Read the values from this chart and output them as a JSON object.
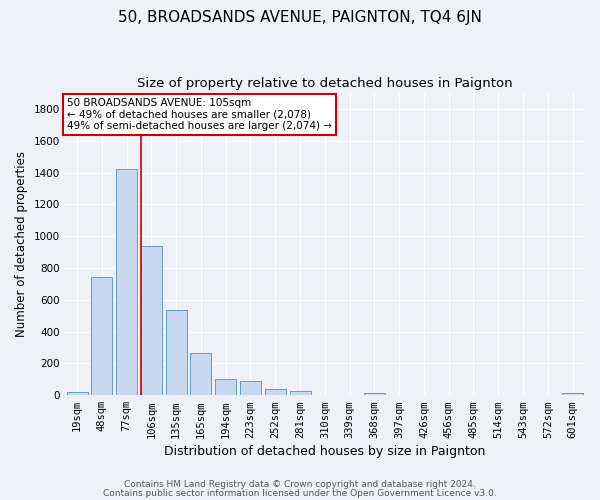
{
  "title": "50, BROADSANDS AVENUE, PAIGNTON, TQ4 6JN",
  "subtitle": "Size of property relative to detached houses in Paignton",
  "xlabel": "Distribution of detached houses by size in Paignton",
  "ylabel": "Number of detached properties",
  "footer1": "Contains HM Land Registry data © Crown copyright and database right 2024.",
  "footer2": "Contains public sector information licensed under the Open Government Licence v3.0.",
  "categories": [
    "19sqm",
    "48sqm",
    "77sqm",
    "106sqm",
    "135sqm",
    "165sqm",
    "194sqm",
    "223sqm",
    "252sqm",
    "281sqm",
    "310sqm",
    "339sqm",
    "368sqm",
    "397sqm",
    "426sqm",
    "456sqm",
    "485sqm",
    "514sqm",
    "543sqm",
    "572sqm",
    "601sqm"
  ],
  "values": [
    22,
    745,
    1425,
    938,
    533,
    265,
    103,
    92,
    37,
    28,
    0,
    0,
    15,
    0,
    0,
    0,
    0,
    0,
    0,
    0,
    13
  ],
  "bar_color": "#c8d8ee",
  "bar_edge_color": "#6699cc",
  "vline_color": "#cc0000",
  "annotation_line1": "50 BROADSANDS AVENUE: 105sqm",
  "annotation_line2": "← 49% of detached houses are smaller (2,078)",
  "annotation_line3": "49% of semi-detached houses are larger (2,074) →",
  "annotation_box_color": "#cc0000",
  "ylim": [
    0,
    1900
  ],
  "yticks": [
    0,
    200,
    400,
    600,
    800,
    1000,
    1200,
    1400,
    1600,
    1800
  ],
  "background_color": "#eef2f8",
  "grid_color": "#ffffff",
  "title_fontsize": 11,
  "subtitle_fontsize": 9.5,
  "ylabel_fontsize": 8.5,
  "xlabel_fontsize": 9,
  "tick_fontsize": 7.5,
  "annotation_fontsize": 7.5,
  "footer_fontsize": 6.5
}
